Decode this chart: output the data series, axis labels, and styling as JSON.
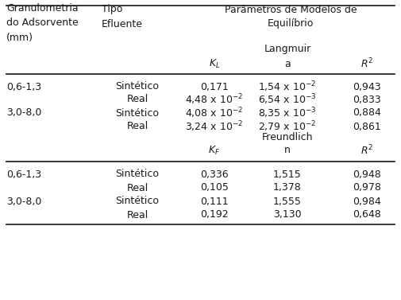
{
  "title_col1": "Granulometria\ndo Adsorvente\n(mm)",
  "title_col2": "Tipo\nEfluente",
  "title_col3": "Parâmetros de Modelos de\nEquilíbrio",
  "langmuir_label": "Langmuir",
  "freundlich_label": "Freundlich",
  "langmuir_rows": [
    [
      "0,6-1,3",
      "Sintético",
      "0,171",
      "1,54 x 10$^{-2}$",
      "0,943"
    ],
    [
      "",
      "Real",
      "4,48 x 10$^{-2}$",
      "6,54 x 10$^{-3}$",
      "0,833"
    ],
    [
      "3,0-8,0",
      "Sintético",
      "4,08 x 10$^{-2}$",
      "8,35 x 10$^{-3}$",
      "0,884"
    ],
    [
      "",
      "Real",
      "3,24 x 10$^{-2}$",
      "2,79 x 10$^{-2}$",
      "0,861"
    ]
  ],
  "freundlich_rows": [
    [
      "0,6-1,3",
      "Sintético",
      "0,336",
      "1,515",
      "0,948"
    ],
    [
      "",
      "Real",
      "0,105",
      "1,378",
      "0,978"
    ],
    [
      "3,0-8,0",
      "Sintético",
      "0,111",
      "1,555",
      "0,984"
    ],
    [
      "",
      "Real",
      "0,192",
      "3,130",
      "0,648"
    ]
  ],
  "bg_color": "#ffffff",
  "text_color": "#1a1a1a",
  "line_color": "#2a2a2a",
  "font_size": 9.0,
  "font_family": "DejaVu Sans"
}
